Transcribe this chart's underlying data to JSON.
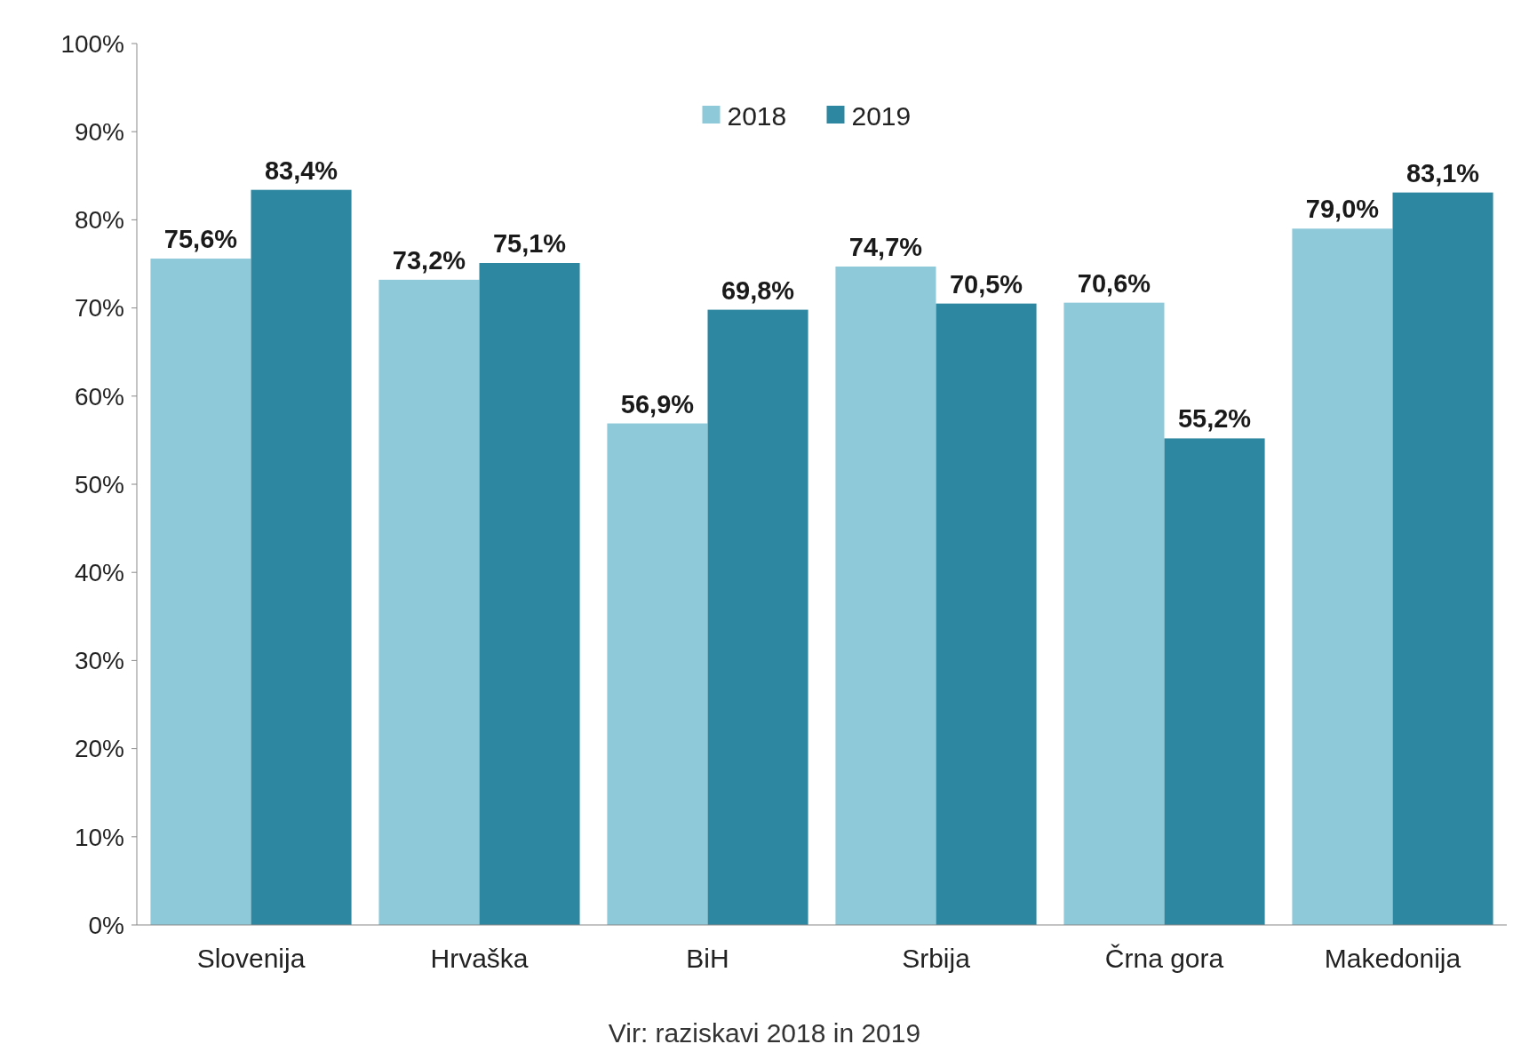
{
  "chart_data": {
    "type": "bar",
    "categories": [
      "Slovenija",
      "Hrvaška",
      "BiH",
      "Srbija",
      "Črna gora",
      "Makedonija"
    ],
    "series": [
      {
        "name": "2018",
        "color": "#8ec9da",
        "values": [
          75.6,
          73.2,
          56.9,
          74.7,
          70.6,
          79.0
        ],
        "value_labels": [
          "75,6%",
          "73,2%",
          "56,9%",
          "74,7%",
          "70,6%",
          "79,0%"
        ]
      },
      {
        "name": "2019",
        "color": "#2e87a0",
        "values": [
          83.4,
          75.1,
          69.8,
          70.5,
          55.2,
          83.1
        ],
        "value_labels": [
          "83,4%",
          "75,1%",
          "69,8%",
          "70,5%",
          "55,2%",
          "83,1%"
        ]
      }
    ],
    "ylim": [
      0,
      100
    ],
    "yticks": [
      {
        "value": 0,
        "label": "0%"
      },
      {
        "value": 10,
        "label": "10%"
      },
      {
        "value": 20,
        "label": "20%"
      },
      {
        "value": 30,
        "label": "30%"
      },
      {
        "value": 40,
        "label": "40%"
      },
      {
        "value": 50,
        "label": "50%"
      },
      {
        "value": 60,
        "label": "60%"
      },
      {
        "value": 70,
        "label": "70%"
      },
      {
        "value": 80,
        "label": "80%"
      },
      {
        "value": 90,
        "label": "90%"
      },
      {
        "value": 100,
        "label": "100%"
      }
    ],
    "legend": "top",
    "annotations": [
      "Vir: raziskavi 2018 in 2019"
    ]
  }
}
